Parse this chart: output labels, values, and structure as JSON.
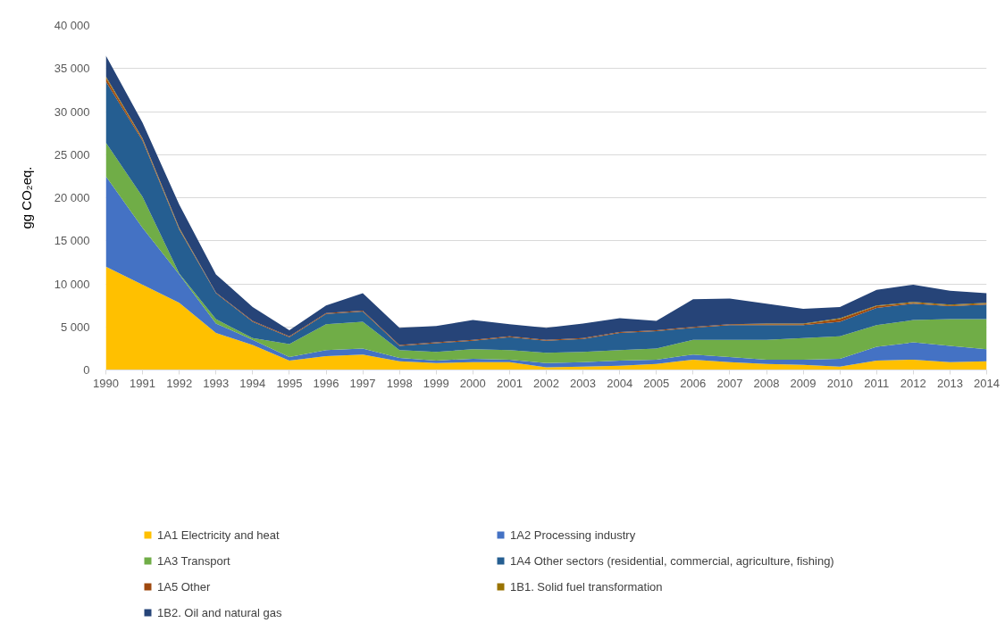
{
  "chart_data": {
    "type": "area",
    "stacked": true,
    "ylabel": "gg CO₂eq.",
    "categories": [
      "1990",
      "1991",
      "1992",
      "1993",
      "1994",
      "1995",
      "1996",
      "1997",
      "1998",
      "1999",
      "2000",
      "2001",
      "2002",
      "2003",
      "2004",
      "2005",
      "2006",
      "2007",
      "2008",
      "2009",
      "2010",
      "2011",
      "2012",
      "2013",
      "2014"
    ],
    "ylim": [
      0,
      40000
    ],
    "yticks": [
      0,
      {
        "value": 5000,
        "label": "5 000"
      },
      {
        "value": 10000,
        "label": "10 000"
      },
      {
        "value": 15000,
        "label": "15 000"
      },
      {
        "value": 20000,
        "label": "20 000"
      },
      {
        "value": 25000,
        "label": "25 000"
      },
      {
        "value": 30000,
        "label": "30 000"
      },
      {
        "value": 35000,
        "label": "35 000"
      },
      {
        "value": 40000,
        "label": "40 000"
      }
    ],
    "grid": "y",
    "legend": "bottom",
    "series": [
      {
        "name": "1A1 Electricity and heat",
        "color": "#ffc000",
        "values": [
          12000,
          9900,
          7800,
          4300,
          2900,
          1100,
          1600,
          1800,
          1000,
          800,
          900,
          900,
          300,
          400,
          500,
          700,
          1200,
          900,
          700,
          600,
          400,
          1100,
          1200,
          900,
          1000
        ]
      },
      {
        "name": "1A2 Processing industry",
        "color": "#4472c4",
        "values": [
          10500,
          6600,
          3300,
          1100,
          600,
          400,
          700,
          700,
          400,
          300,
          400,
          300,
          500,
          500,
          600,
          500,
          600,
          600,
          500,
          600,
          900,
          1600,
          2000,
          1900,
          1400
        ]
      },
      {
        "name": "1A3 Transport",
        "color": "#70ad47",
        "values": [
          3900,
          3600,
          100,
          500,
          200,
          1500,
          3000,
          3100,
          900,
          1000,
          1100,
          1100,
          1200,
          1200,
          1200,
          1300,
          1700,
          2000,
          2300,
          2500,
          2600,
          2500,
          2600,
          3100,
          3500
        ]
      },
      {
        "name": "1A4 Other sectors (residential, commercial, agriculture, fishing)",
        "color": "#255e91",
        "values": [
          7100,
          6500,
          5100,
          3000,
          1900,
          800,
          1200,
          1200,
          500,
          1000,
          1000,
          1500,
          1400,
          1500,
          2000,
          2000,
          1400,
          1700,
          1700,
          1500,
          1700,
          2000,
          1900,
          1500,
          1700
        ]
      },
      {
        "name": "1A5 Other",
        "color": "#9e480e",
        "values": [
          400,
          200,
          100,
          100,
          100,
          100,
          100,
          100,
          100,
          100,
          100,
          100,
          100,
          100,
          100,
          100,
          100,
          100,
          100,
          100,
          300,
          200,
          100,
          100,
          100
        ]
      },
      {
        "name": "1B1. Solid fuel transformation",
        "color": "#997300",
        "values": [
          200,
          100,
          100,
          0,
          0,
          0,
          0,
          0,
          0,
          0,
          0,
          0,
          0,
          0,
          0,
          0,
          0,
          0,
          100,
          100,
          100,
          100,
          100,
          100,
          100
        ]
      },
      {
        "name": "1B2. Oil and natural gas",
        "color": "#264478",
        "values": [
          2400,
          1800,
          2700,
          2100,
          1600,
          700,
          900,
          2000,
          2000,
          1900,
          2300,
          1400,
          1400,
          1700,
          1600,
          1100,
          3200,
          3000,
          2300,
          1700,
          1300,
          1800,
          2000,
          1600,
          1100
        ]
      }
    ]
  }
}
